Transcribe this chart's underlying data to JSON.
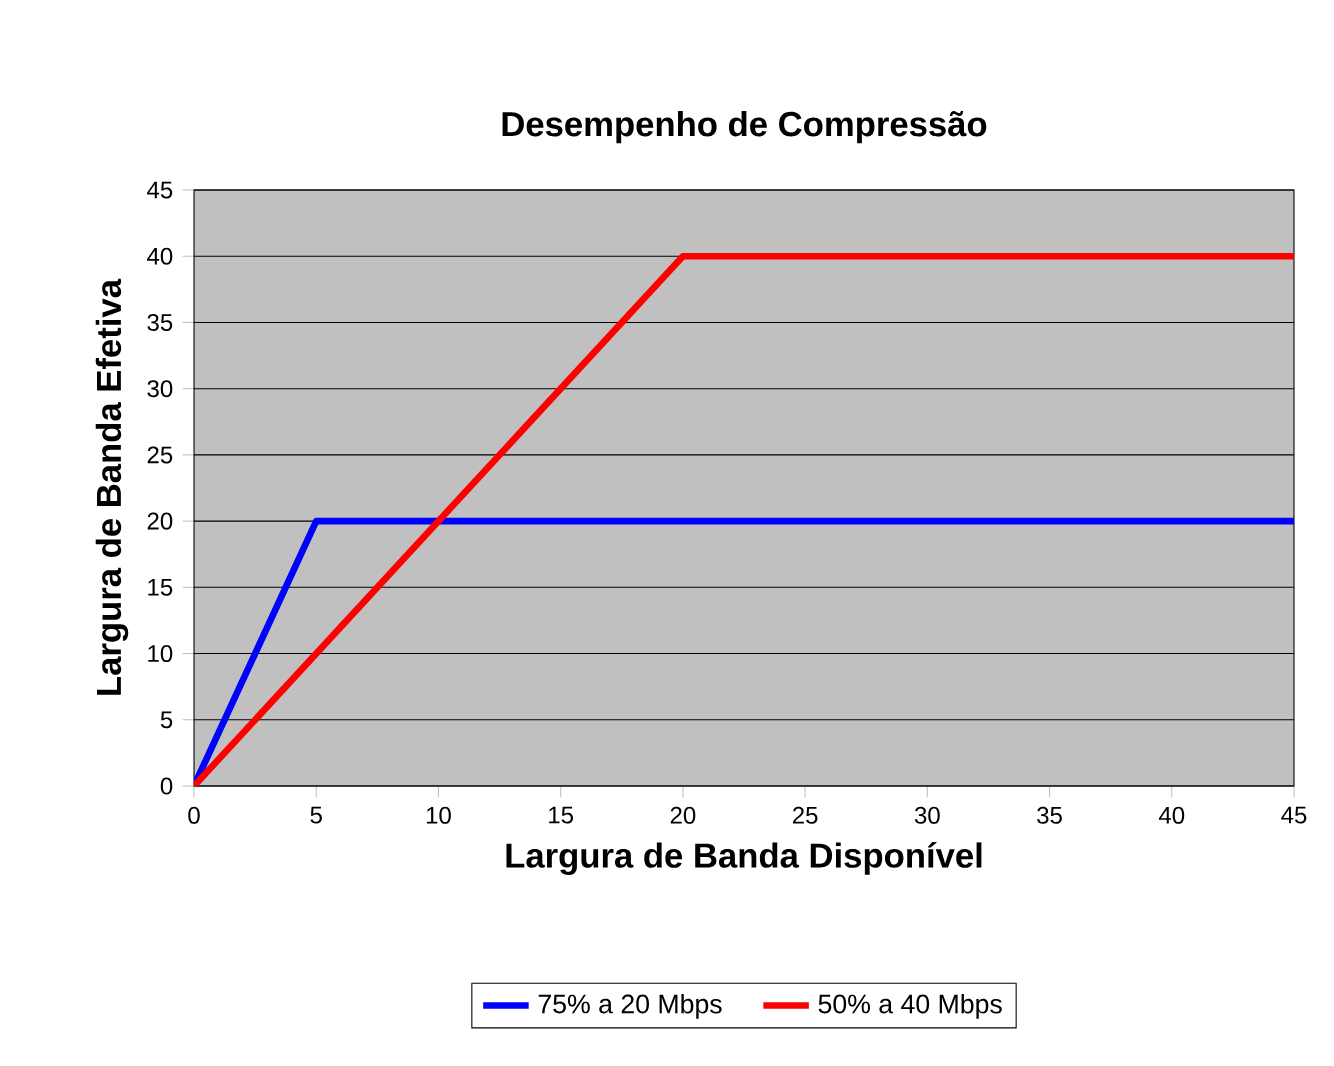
{
  "chart_data": {
    "type": "line",
    "title": "Desempenho de Compressão",
    "xlabel": "Largura de Banda Disponível",
    "ylabel": "Largura de Banda Efetiva",
    "xlim": [
      0,
      45
    ],
    "ylim": [
      0,
      45
    ],
    "xticks": [
      0,
      5,
      10,
      15,
      20,
      25,
      30,
      35,
      40,
      45
    ],
    "yticks": [
      0,
      5,
      10,
      15,
      20,
      25,
      30,
      35,
      40,
      45
    ],
    "grid": "y",
    "legend": "bottom",
    "marker": "none",
    "line_style": "solid",
    "series": [
      {
        "name": "75% a 20 Mbps",
        "color": "#0000ff",
        "x": [
          0,
          5,
          45
        ],
        "values": [
          0,
          20,
          20
        ]
      },
      {
        "name": "50% a 40 Mbps",
        "color": "#ff0000",
        "x": [
          0,
          20,
          45
        ],
        "values": [
          0,
          40,
          40
        ]
      }
    ]
  }
}
